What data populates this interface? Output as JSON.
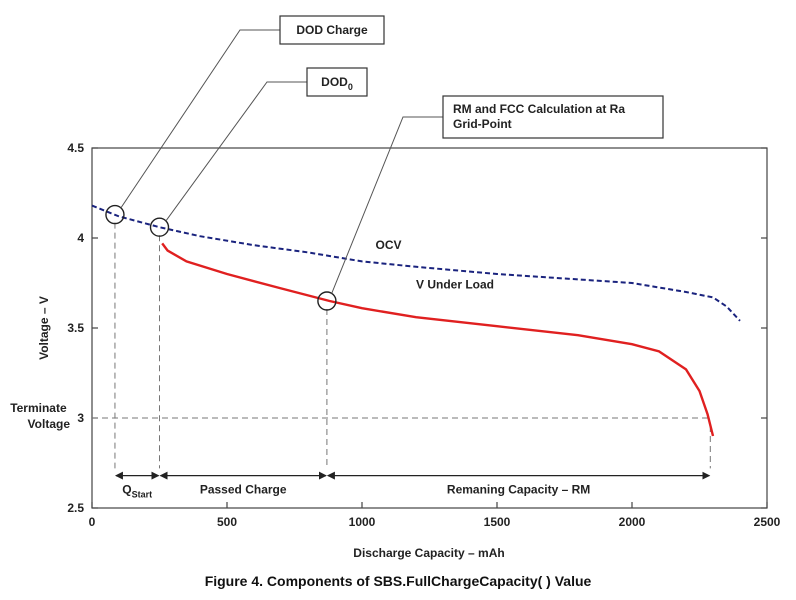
{
  "chart_data": {
    "type": "line",
    "caption": "Figure 4. Components of SBS.FullChargeCapacity( ) Value",
    "xlabel": "Discharge Capacity – mAh",
    "ylabel": "Voltage – V",
    "xlim": [
      0,
      2500
    ],
    "ylim": [
      2.5,
      4.5
    ],
    "xticks": [
      0,
      500,
      1000,
      1500,
      2000,
      2500
    ],
    "yticks": [
      2.5,
      3,
      3.5,
      4,
      4.5
    ],
    "xtick_labels": [
      "0",
      "500",
      "1000",
      "1500",
      "2000",
      "2500"
    ],
    "ytick_labels": [
      "2.5",
      "3",
      "3.5",
      "4",
      "4.5"
    ],
    "grid": false,
    "series": [
      {
        "name": "OCV",
        "color": "#1a237e",
        "style": "dashed",
        "x": [
          0,
          100,
          250,
          400,
          600,
          800,
          1000,
          1200,
          1500,
          1800,
          2000,
          2200,
          2300,
          2350,
          2400
        ],
        "y": [
          4.18,
          4.12,
          4.06,
          4.01,
          3.96,
          3.92,
          3.87,
          3.84,
          3.8,
          3.77,
          3.75,
          3.7,
          3.67,
          3.62,
          3.54
        ]
      },
      {
        "name": "V Under Load",
        "color": "#e02020",
        "style": "solid",
        "x": [
          260,
          280,
          350,
          500,
          700,
          880,
          1000,
          1200,
          1500,
          1800,
          2000,
          2100,
          2200,
          2250,
          2280,
          2300
        ],
        "y": [
          3.97,
          3.93,
          3.87,
          3.8,
          3.72,
          3.65,
          3.61,
          3.56,
          3.51,
          3.46,
          3.41,
          3.37,
          3.27,
          3.15,
          3.02,
          2.9
        ]
      }
    ],
    "terminate_voltage": {
      "label": "Terminate Voltage",
      "y": 3.0
    },
    "reference_x": [
      85,
      250,
      870,
      2290
    ],
    "callouts": [
      {
        "label": "DOD Charge",
        "x": 85,
        "y": 4.13
      },
      {
        "label": "DOD",
        "subscript": "0",
        "x": 250,
        "y": 4.06
      },
      {
        "label": "RM and FCC Calculation at Ra Grid-Point",
        "x": 870,
        "y": 3.65
      }
    ],
    "spans": [
      {
        "label": "Q",
        "subscript": "Start",
        "from": 85,
        "to": 250
      },
      {
        "label": "Passed Charge",
        "from": 250,
        "to": 870
      },
      {
        "label": "Remaning Capacity – RM",
        "from": 870,
        "to": 2290
      }
    ],
    "series_labels": [
      {
        "text": "OCV",
        "x": 1050,
        "y": 3.94
      },
      {
        "text": "V Under Load",
        "x": 1200,
        "y": 3.72
      }
    ]
  }
}
